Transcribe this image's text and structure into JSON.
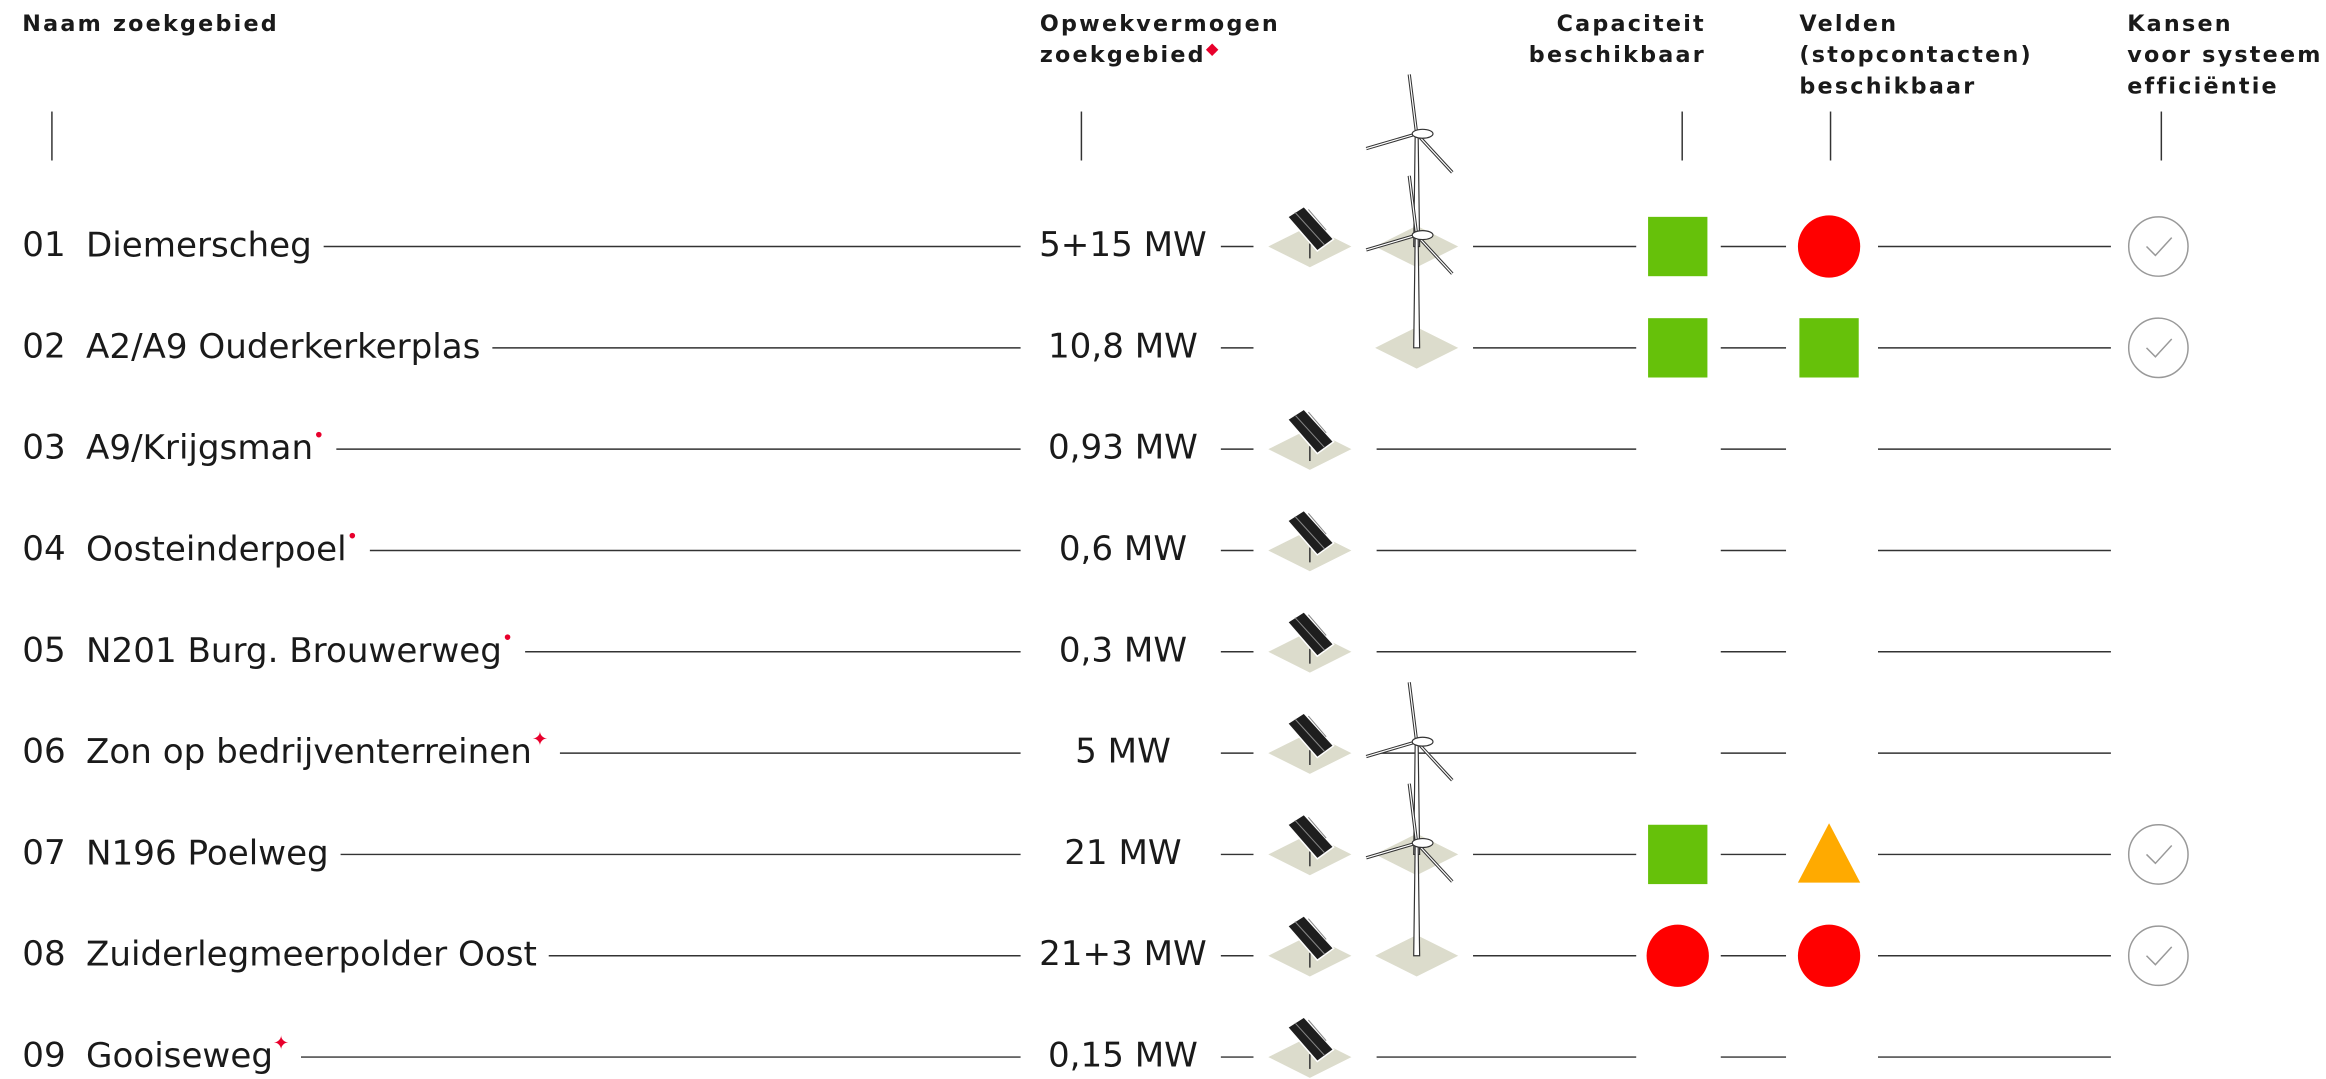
{
  "header": {
    "columns": [
      {
        "lines": [
          "Naam zoekgebied"
        ]
      },
      {
        "lines": [
          "Opwekvermogen",
          "zoekgebied"
        ],
        "marker": "◆"
      },
      {
        "lines": [
          "Capaciteit",
          "beschikbaar"
        ]
      },
      {
        "lines": [
          "Velden",
          "(stopcontacten)",
          "beschikbaar"
        ]
      },
      {
        "lines": [
          "Kansen",
          "voor systeem",
          "efficiëntie"
        ]
      }
    ]
  },
  "rows": [
    {
      "number": "01",
      "name": "Diemerscheg",
      "power": "5+15 MW",
      "solar": true,
      "wind": true,
      "capacity": {
        "shape": "square",
        "color": "#66c10a"
      },
      "fields": {
        "shape": "circle",
        "color": "#ff0000"
      },
      "efficiency": true
    },
    {
      "number": "02",
      "name": "A2/A9 Ouderkerkerplas",
      "power": "10,8 MW",
      "solar": false,
      "wind": true,
      "capacity": {
        "shape": "square",
        "color": "#66c10a"
      },
      "fields": {
        "shape": "square",
        "color": "#66c10a"
      },
      "efficiency": true
    },
    {
      "number": "03",
      "name": "A9/Krijgsman",
      "marker": "•",
      "power": "0,93 MW",
      "solar": true,
      "wind": false,
      "efficiency": false
    },
    {
      "number": "04",
      "name": "Oosteinderpoel",
      "marker": "•",
      "power": "0,6 MW",
      "solar": true,
      "wind": false,
      "efficiency": false
    },
    {
      "number": "05",
      "name": "N201 Burg. Brouwerweg",
      "marker": "•",
      "power": "0,3 MW",
      "solar": true,
      "wind": false,
      "efficiency": false
    },
    {
      "number": "06",
      "name": "Zon op bedrijventerreinen",
      "marker": "✦",
      "power": "5 MW",
      "solar": true,
      "wind": false,
      "efficiency": false
    },
    {
      "number": "07",
      "name": "N196 Poelweg",
      "power": "21 MW",
      "solar": true,
      "wind": true,
      "capacity": {
        "shape": "square",
        "color": "#66c10a"
      },
      "fields": {
        "shape": "triangle",
        "color": "#ffaa00"
      },
      "efficiency": true
    },
    {
      "number": "08",
      "name": "Zuiderlegmeerpolder Oost",
      "power": "21+3 MW",
      "solar": true,
      "wind": true,
      "capacity": {
        "shape": "circle",
        "color": "#ff0000"
      },
      "fields": {
        "shape": "circle",
        "color": "#ff0000"
      },
      "efficiency": true
    },
    {
      "number": "09",
      "name": "Gooiseweg",
      "marker": "✦",
      "power": "0,15 MW",
      "solar": true,
      "wind": false,
      "efficiency": false
    }
  ]
}
